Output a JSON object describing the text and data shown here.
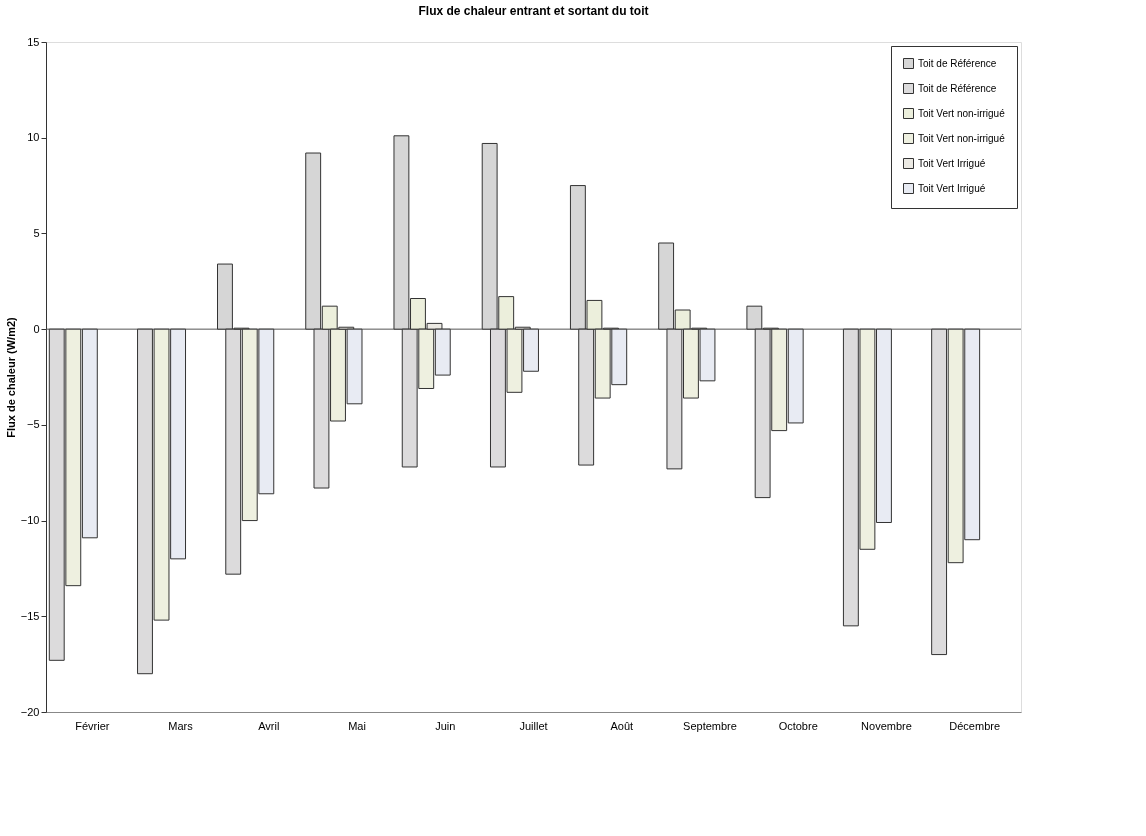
{
  "chart_data": {
    "type": "bar",
    "title": "Flux de chaleur entrant et sortant du toit",
    "ylabel": "Flux de chaleur (W/m2)",
    "categories": [
      "Février",
      "Mars",
      "Avril",
      "Mai",
      "Juin",
      "Juillet",
      "Août",
      "Septembre",
      "Octobre",
      "Novembre",
      "Décembre"
    ],
    "series": [
      {
        "name": "Toit de Référence",
        "color": "#d6d6d6",
        "values": [
          null,
          null,
          3.4,
          9.2,
          10.1,
          9.7,
          7.5,
          4.5,
          1.2,
          null,
          null
        ]
      },
      {
        "name": "Toit de Référence",
        "color": "#dcdbdc",
        "values": [
          -17.3,
          -18.0,
          -12.8,
          -8.3,
          -7.2,
          -7.2,
          -7.1,
          -7.3,
          -8.8,
          -15.5,
          -17.0
        ]
      },
      {
        "name": "Toit Vert non-irrigué",
        "color": "#ecefdc",
        "values": [
          null,
          null,
          0.05,
          1.2,
          1.6,
          1.7,
          1.5,
          1.0,
          0.05,
          null,
          null
        ]
      },
      {
        "name": "Toit Vert non-irrigué",
        "color": "#eef0e0",
        "values": [
          -13.4,
          -15.2,
          -10.0,
          -4.8,
          -3.1,
          -3.3,
          -3.6,
          -3.6,
          -5.3,
          -11.5,
          -12.2
        ]
      },
      {
        "name": "Toit Vert Irrigué",
        "color": "#eceae4",
        "values": [
          null,
          null,
          null,
          0.1,
          0.3,
          0.1,
          0.05,
          0.05,
          null,
          null,
          null
        ]
      },
      {
        "name": "Toit Vert Irrigué",
        "color": "#e8ebf3",
        "values": [
          -10.9,
          -12.0,
          -8.6,
          -3.9,
          -2.4,
          -2.2,
          -2.9,
          -2.7,
          -4.9,
          -10.1,
          -11.0
        ]
      }
    ],
    "ylim": [
      -20,
      15
    ],
    "yticks": [
      -20,
      -15,
      -10,
      -5,
      0,
      5,
      10,
      15
    ],
    "ref_lines": [
      {
        "axis": "y",
        "value": 0
      }
    ],
    "legend": "top right"
  }
}
